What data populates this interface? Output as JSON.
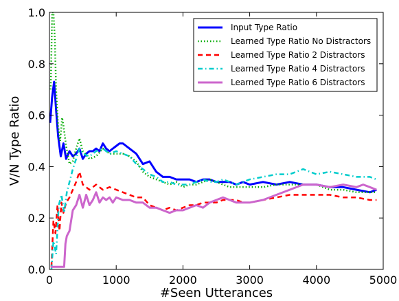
{
  "chart_data": {
    "type": "line",
    "title": "",
    "xlabel": "#Seen Utterances",
    "ylabel": "V/N Type Ratio",
    "xlim": [
      0,
      5000
    ],
    "ylim": [
      0.0,
      1.0
    ],
    "xticks": [
      0,
      1000,
      2000,
      3000,
      4000,
      5000
    ],
    "xtick_labels": [
      "0",
      "1000",
      "2000",
      "3000",
      "4000",
      "5000"
    ],
    "yticks": [
      0.0,
      0.2,
      0.4,
      0.6,
      0.8,
      1.0
    ],
    "ytick_labels": [
      "0.0",
      "0.2",
      "0.4",
      "0.6",
      "0.8",
      "1.0"
    ],
    "grid": false,
    "legend_position": "top-right",
    "series": [
      {
        "name": "Input Type Ratio",
        "color": "#0000ff",
        "style": "solid",
        "points": [
          [
            10,
            0.57
          ],
          [
            40,
            0.67
          ],
          [
            70,
            0.73
          ],
          [
            100,
            0.62
          ],
          [
            130,
            0.52
          ],
          [
            170,
            0.44
          ],
          [
            210,
            0.49
          ],
          [
            250,
            0.43
          ],
          [
            300,
            0.46
          ],
          [
            350,
            0.44
          ],
          [
            400,
            0.45
          ],
          [
            450,
            0.47
          ],
          [
            500,
            0.43
          ],
          [
            550,
            0.45
          ],
          [
            600,
            0.46
          ],
          [
            650,
            0.46
          ],
          [
            700,
            0.47
          ],
          [
            750,
            0.46
          ],
          [
            800,
            0.49
          ],
          [
            850,
            0.47
          ],
          [
            900,
            0.46
          ],
          [
            950,
            0.47
          ],
          [
            1000,
            0.48
          ],
          [
            1050,
            0.49
          ],
          [
            1100,
            0.49
          ],
          [
            1150,
            0.48
          ],
          [
            1200,
            0.47
          ],
          [
            1300,
            0.45
          ],
          [
            1400,
            0.41
          ],
          [
            1500,
            0.42
          ],
          [
            1600,
            0.38
          ],
          [
            1700,
            0.36
          ],
          [
            1800,
            0.36
          ],
          [
            1900,
            0.35
          ],
          [
            2000,
            0.35
          ],
          [
            2100,
            0.35
          ],
          [
            2200,
            0.34
          ],
          [
            2300,
            0.35
          ],
          [
            2400,
            0.35
          ],
          [
            2500,
            0.34
          ],
          [
            2600,
            0.34
          ],
          [
            2700,
            0.34
          ],
          [
            2800,
            0.33
          ],
          [
            2900,
            0.34
          ],
          [
            3000,
            0.33
          ],
          [
            3200,
            0.34
          ],
          [
            3400,
            0.33
          ],
          [
            3600,
            0.34
          ],
          [
            3800,
            0.33
          ],
          [
            4000,
            0.33
          ],
          [
            4200,
            0.32
          ],
          [
            4400,
            0.32
          ],
          [
            4600,
            0.31
          ],
          [
            4800,
            0.3
          ],
          [
            4900,
            0.31
          ]
        ]
      },
      {
        "name": "Learned Type Ratio No Distractors",
        "color": "#00aa00",
        "style": "dotted",
        "points": [
          [
            20,
            0.7
          ],
          [
            40,
            1.0
          ],
          [
            60,
            1.0
          ],
          [
            80,
            0.9
          ],
          [
            100,
            0.7
          ],
          [
            130,
            0.56
          ],
          [
            160,
            0.5
          ],
          [
            190,
            0.59
          ],
          [
            210,
            0.56
          ],
          [
            250,
            0.48
          ],
          [
            300,
            0.41
          ],
          [
            350,
            0.42
          ],
          [
            400,
            0.47
          ],
          [
            450,
            0.51
          ],
          [
            500,
            0.46
          ],
          [
            600,
            0.43
          ],
          [
            700,
            0.44
          ],
          [
            800,
            0.47
          ],
          [
            900,
            0.45
          ],
          [
            1000,
            0.45
          ],
          [
            1100,
            0.45
          ],
          [
            1200,
            0.44
          ],
          [
            1300,
            0.42
          ],
          [
            1400,
            0.38
          ],
          [
            1500,
            0.36
          ],
          [
            1600,
            0.35
          ],
          [
            1700,
            0.34
          ],
          [
            1800,
            0.33
          ],
          [
            1900,
            0.34
          ],
          [
            2000,
            0.32
          ],
          [
            2100,
            0.33
          ],
          [
            2200,
            0.33
          ],
          [
            2300,
            0.34
          ],
          [
            2400,
            0.35
          ],
          [
            2500,
            0.34
          ],
          [
            2600,
            0.33
          ],
          [
            2700,
            0.32
          ],
          [
            2800,
            0.32
          ],
          [
            2900,
            0.32
          ],
          [
            3000,
            0.32
          ],
          [
            3200,
            0.32
          ],
          [
            3400,
            0.33
          ],
          [
            3600,
            0.33
          ],
          [
            3800,
            0.33
          ],
          [
            4000,
            0.33
          ],
          [
            4200,
            0.31
          ],
          [
            4400,
            0.31
          ],
          [
            4600,
            0.3
          ],
          [
            4800,
            0.3
          ],
          [
            4900,
            0.3
          ]
        ]
      },
      {
        "name": "Learned Type Ratio 2 Distractors",
        "color": "#ff0000",
        "style": "dashed",
        "points": [
          [
            30,
            0.01
          ],
          [
            60,
            0.19
          ],
          [
            90,
            0.14
          ],
          [
            120,
            0.25
          ],
          [
            150,
            0.15
          ],
          [
            180,
            0.26
          ],
          [
            210,
            0.22
          ],
          [
            250,
            0.26
          ],
          [
            300,
            0.28
          ],
          [
            350,
            0.31
          ],
          [
            400,
            0.34
          ],
          [
            450,
            0.38
          ],
          [
            500,
            0.33
          ],
          [
            600,
            0.31
          ],
          [
            700,
            0.33
          ],
          [
            800,
            0.31
          ],
          [
            900,
            0.32
          ],
          [
            1000,
            0.31
          ],
          [
            1100,
            0.3
          ],
          [
            1200,
            0.29
          ],
          [
            1300,
            0.28
          ],
          [
            1400,
            0.28
          ],
          [
            1500,
            0.25
          ],
          [
            1600,
            0.24
          ],
          [
            1700,
            0.23
          ],
          [
            1800,
            0.24
          ],
          [
            1900,
            0.23
          ],
          [
            2000,
            0.24
          ],
          [
            2100,
            0.25
          ],
          [
            2200,
            0.25
          ],
          [
            2300,
            0.26
          ],
          [
            2400,
            0.26
          ],
          [
            2500,
            0.26
          ],
          [
            2600,
            0.27
          ],
          [
            2700,
            0.27
          ],
          [
            2800,
            0.27
          ],
          [
            2900,
            0.26
          ],
          [
            3000,
            0.26
          ],
          [
            3200,
            0.27
          ],
          [
            3400,
            0.28
          ],
          [
            3600,
            0.29
          ],
          [
            3800,
            0.29
          ],
          [
            4000,
            0.29
          ],
          [
            4200,
            0.29
          ],
          [
            4400,
            0.28
          ],
          [
            4600,
            0.28
          ],
          [
            4800,
            0.27
          ],
          [
            4900,
            0.27
          ]
        ]
      },
      {
        "name": "Learned Type Ratio 4 Distractors",
        "color": "#00cccc",
        "style": "dashdot",
        "points": [
          [
            30,
            0.0
          ],
          [
            60,
            0.11
          ],
          [
            100,
            0.06
          ],
          [
            140,
            0.25
          ],
          [
            180,
            0.29
          ],
          [
            220,
            0.22
          ],
          [
            260,
            0.3
          ],
          [
            300,
            0.34
          ],
          [
            350,
            0.39
          ],
          [
            400,
            0.43
          ],
          [
            450,
            0.47
          ],
          [
            500,
            0.45
          ],
          [
            600,
            0.44
          ],
          [
            700,
            0.46
          ],
          [
            800,
            0.47
          ],
          [
            900,
            0.45
          ],
          [
            1000,
            0.46
          ],
          [
            1100,
            0.45
          ],
          [
            1200,
            0.44
          ],
          [
            1300,
            0.41
          ],
          [
            1400,
            0.39
          ],
          [
            1500,
            0.37
          ],
          [
            1600,
            0.36
          ],
          [
            1700,
            0.34
          ],
          [
            1800,
            0.34
          ],
          [
            1900,
            0.33
          ],
          [
            2000,
            0.33
          ],
          [
            2100,
            0.33
          ],
          [
            2200,
            0.34
          ],
          [
            2300,
            0.35
          ],
          [
            2400,
            0.34
          ],
          [
            2500,
            0.34
          ],
          [
            2600,
            0.35
          ],
          [
            2700,
            0.34
          ],
          [
            2800,
            0.33
          ],
          [
            2900,
            0.34
          ],
          [
            3000,
            0.35
          ],
          [
            3200,
            0.36
          ],
          [
            3400,
            0.37
          ],
          [
            3600,
            0.37
          ],
          [
            3800,
            0.39
          ],
          [
            3900,
            0.38
          ],
          [
            4000,
            0.37
          ],
          [
            4200,
            0.38
          ],
          [
            4400,
            0.37
          ],
          [
            4600,
            0.36
          ],
          [
            4800,
            0.36
          ],
          [
            4900,
            0.35
          ]
        ]
      },
      {
        "name": "Learned Type Ratio 6 Distractors",
        "color": "#cc66cc",
        "style": "solid",
        "points": [
          [
            20,
            0.01
          ],
          [
            60,
            0.01
          ],
          [
            100,
            0.01
          ],
          [
            140,
            0.01
          ],
          [
            180,
            0.01
          ],
          [
            220,
            0.01
          ],
          [
            240,
            0.1
          ],
          [
            260,
            0.13
          ],
          [
            300,
            0.15
          ],
          [
            350,
            0.23
          ],
          [
            400,
            0.25
          ],
          [
            450,
            0.29
          ],
          [
            500,
            0.24
          ],
          [
            550,
            0.29
          ],
          [
            600,
            0.25
          ],
          [
            650,
            0.27
          ],
          [
            700,
            0.3
          ],
          [
            750,
            0.26
          ],
          [
            800,
            0.28
          ],
          [
            850,
            0.27
          ],
          [
            900,
            0.28
          ],
          [
            950,
            0.26
          ],
          [
            1000,
            0.28
          ],
          [
            1100,
            0.27
          ],
          [
            1200,
            0.27
          ],
          [
            1300,
            0.26
          ],
          [
            1400,
            0.26
          ],
          [
            1500,
            0.24
          ],
          [
            1600,
            0.24
          ],
          [
            1700,
            0.23
          ],
          [
            1800,
            0.22
          ],
          [
            1900,
            0.23
          ],
          [
            2000,
            0.23
          ],
          [
            2100,
            0.24
          ],
          [
            2200,
            0.25
          ],
          [
            2300,
            0.24
          ],
          [
            2400,
            0.26
          ],
          [
            2500,
            0.27
          ],
          [
            2600,
            0.28
          ],
          [
            2700,
            0.27
          ],
          [
            2800,
            0.26
          ],
          [
            2900,
            0.26
          ],
          [
            3000,
            0.26
          ],
          [
            3200,
            0.27
          ],
          [
            3400,
            0.29
          ],
          [
            3600,
            0.31
          ],
          [
            3800,
            0.33
          ],
          [
            4000,
            0.33
          ],
          [
            4200,
            0.32
          ],
          [
            4400,
            0.33
          ],
          [
            4600,
            0.32
          ],
          [
            4700,
            0.33
          ],
          [
            4800,
            0.32
          ],
          [
            4900,
            0.31
          ]
        ]
      }
    ]
  }
}
